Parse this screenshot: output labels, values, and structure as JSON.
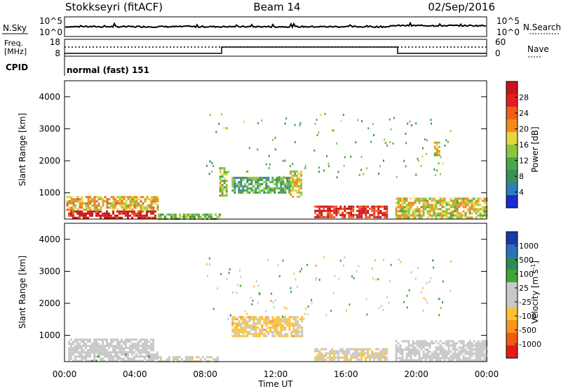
{
  "header": {
    "station": "Stokkseyri (fitACF)",
    "beam": "Beam 14",
    "date": "02/Sep/2016"
  },
  "top_panels": {
    "nsky_label": "N.Sky",
    "nsky_ticks": [
      "10^5",
      "10^0"
    ],
    "nsearch_label": "N.Search",
    "nsearch_ticks": [
      "10^5",
      "10^0"
    ],
    "freq_label_1": "Freq.",
    "freq_label_2": "[MHz]",
    "freq_ticks": [
      "18",
      "8"
    ],
    "nave_label": "Nave",
    "nave_ticks": [
      "60",
      "0"
    ],
    "cpid_label": "CPID",
    "cpid_text": "normal (fast) 151"
  },
  "x_axis": {
    "label": "Time UT",
    "ticks": [
      "00:00",
      "04:00",
      "08:00",
      "12:00",
      "16:00",
      "20:00",
      "00:00"
    ]
  },
  "colors": {
    "power": [
      "#1c2cd0",
      "#2c7fb8",
      "#3a8f57",
      "#49a84a",
      "#8cc63f",
      "#e6d53c",
      "#f08a1d",
      "#f06018",
      "#e02020",
      "#c8141a"
    ],
    "velocity": [
      "#e81818",
      "#f05a14",
      "#f8941c",
      "#fcc233",
      "#c8c8c8",
      "#c8c8c8",
      "#3fa53a",
      "#2e8b57",
      "#2c6fbb",
      "#1b3aa8"
    ]
  },
  "chart_data": [
    {
      "type": "heatmap",
      "name": "power",
      "ylabel": "Slant Range [km]",
      "yticks": [
        "1000",
        "2000",
        "3000",
        "4000"
      ],
      "ylim": [
        180,
        4500
      ],
      "xlim_hours": [
        0,
        24
      ],
      "colorbar": {
        "label": "Power [dB]",
        "ticks": [
          "4",
          "8",
          "12",
          "16",
          "20",
          "24",
          "28"
        ],
        "range": [
          0,
          30
        ]
      },
      "regions": [
        {
          "t0": 0.2,
          "t1": 5.2,
          "r0": 200,
          "r1": 450,
          "v": 28
        },
        {
          "t0": 0.1,
          "t1": 5.3,
          "r0": 450,
          "r1": 900,
          "v": 18
        },
        {
          "t0": 5.3,
          "t1": 8.8,
          "r0": 200,
          "r1": 350,
          "v": 12
        },
        {
          "t0": 8.8,
          "t1": 9.2,
          "r0": 900,
          "r1": 1800,
          "v": 14
        },
        {
          "t0": 9.5,
          "t1": 12.8,
          "r0": 1000,
          "r1": 1500,
          "v": 10
        },
        {
          "t0": 12.8,
          "t1": 13.5,
          "r0": 900,
          "r1": 1700,
          "v": 16
        },
        {
          "t0": 14.2,
          "t1": 18.3,
          "r0": 250,
          "r1": 600,
          "v": 26
        },
        {
          "t0": 18.8,
          "t1": 24.0,
          "r0": 250,
          "r1": 850,
          "v": 16
        },
        {
          "t0": 21.0,
          "t1": 21.3,
          "r0": 2200,
          "r1": 2600,
          "v": 16
        }
      ]
    },
    {
      "type": "heatmap",
      "name": "velocity",
      "ylabel": "Slant Range [km]",
      "yticks": [
        "1000",
        "2000",
        "3000",
        "4000"
      ],
      "ylim": [
        180,
        4500
      ],
      "xlim_hours": [
        0,
        24
      ],
      "colorbar": {
        "label": "Velocity [m s^-1]",
        "ticks": [
          "-1000",
          "-500",
          "-100",
          "-25",
          "25",
          "100",
          "500",
          "1000"
        ],
        "range": [
          -1200,
          1200
        ]
      },
      "regions": [
        {
          "t0": 0.2,
          "t1": 5.3,
          "r0": 200,
          "r1": 500,
          "v": 60
        },
        {
          "t0": 0.2,
          "t1": 5.0,
          "r0": 500,
          "r1": 900,
          "v": 0
        },
        {
          "t0": 5.3,
          "t1": 8.8,
          "r0": 200,
          "r1": 350,
          "v": -80
        },
        {
          "t0": 9.5,
          "t1": 13.5,
          "r0": 1000,
          "r1": 1600,
          "v": -300
        },
        {
          "t0": 14.2,
          "t1": 18.3,
          "r0": 250,
          "r1": 600,
          "v": -150
        },
        {
          "t0": 18.8,
          "t1": 24.0,
          "r0": 250,
          "r1": 850,
          "v": 0
        }
      ]
    }
  ]
}
